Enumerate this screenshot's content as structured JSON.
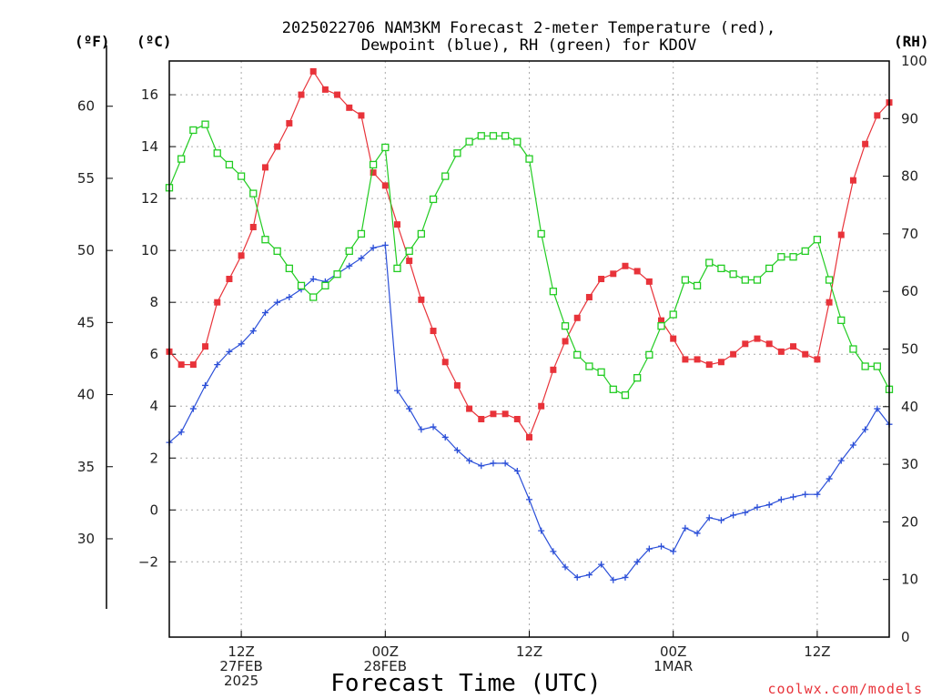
{
  "chart_data": {
    "type": "line",
    "title_line1": "2025022706 NAM3KM Forecast 2-meter Temperature (red),",
    "title_line2": "Dewpoint (blue), RH (green) for KDOV",
    "xlabel": "Forecast Time (UTC)",
    "credit": "coolwx.com/models",
    "left_unit_f": "(ºF)",
    "left_unit_c": "(ºC)",
    "right_unit": "(RH)",
    "ylim_c": [
      -4.9,
      17.3
    ],
    "ylim_rh": [
      0,
      100
    ],
    "f_ticks": [
      30,
      35,
      40,
      45,
      50,
      55,
      60
    ],
    "c_ticks": [
      -2,
      0,
      2,
      4,
      6,
      8,
      10,
      12,
      14,
      16
    ],
    "c_tick_labels": [
      "−2",
      "0",
      "2",
      "4",
      "6",
      "8",
      "10",
      "12",
      "14",
      "16"
    ],
    "rh_ticks": [
      0,
      10,
      20,
      30,
      40,
      50,
      60,
      70,
      80,
      90,
      100
    ],
    "x_range_hours": [
      0,
      60
    ],
    "x_ticks": [
      {
        "hour": 6,
        "lines": [
          "12Z",
          "27FEB",
          "2025"
        ]
      },
      {
        "hour": 18,
        "lines": [
          "00Z",
          "28FEB"
        ]
      },
      {
        "hour": 30,
        "lines": [
          "12Z"
        ]
      },
      {
        "hour": 42,
        "lines": [
          "00Z",
          "1MAR"
        ]
      },
      {
        "hour": 54,
        "lines": [
          "12Z"
        ]
      }
    ],
    "series": [
      {
        "key": "temperature",
        "color": "#e8333a",
        "marker": "filled-square",
        "axis": "left",
        "values": [
          6.1,
          5.6,
          5.6,
          6.3,
          8.0,
          8.9,
          9.8,
          10.9,
          13.2,
          14.0,
          14.9,
          16.0,
          16.9,
          16.2,
          16.0,
          15.5,
          15.2,
          13.0,
          12.5,
          11.0,
          9.6,
          8.1,
          6.9,
          5.7,
          4.8,
          3.9,
          3.5,
          3.7,
          3.7,
          3.5,
          2.8,
          4.0,
          5.4,
          6.5,
          7.4,
          8.2,
          8.9,
          9.1,
          9.4,
          9.2,
          8.8,
          7.3,
          6.6,
          5.8,
          5.8,
          5.6,
          5.7,
          6.0,
          6.4,
          6.6,
          6.4,
          6.1,
          6.3,
          6.0,
          5.8,
          8.0,
          10.6,
          12.7,
          14.1,
          15.2,
          15.7
        ]
      },
      {
        "key": "dewpoint",
        "color": "#2b4fd8",
        "marker": "plus",
        "axis": "left",
        "values": [
          2.6,
          3.0,
          3.9,
          4.8,
          5.6,
          6.1,
          6.4,
          6.9,
          7.6,
          8.0,
          8.2,
          8.5,
          8.9,
          8.8,
          9.1,
          9.4,
          9.7,
          10.1,
          10.2,
          4.6,
          3.9,
          3.1,
          3.2,
          2.8,
          2.3,
          1.9,
          1.7,
          1.8,
          1.8,
          1.5,
          0.4,
          -0.8,
          -1.6,
          -2.2,
          -2.6,
          -2.5,
          -2.1,
          -2.7,
          -2.6,
          -2.0,
          -1.5,
          -1.4,
          -1.6,
          -0.7,
          -0.9,
          -0.3,
          -0.4,
          -0.2,
          -0.1,
          0.1,
          0.2,
          0.4,
          0.5,
          0.6,
          0.6,
          1.2,
          1.9,
          2.5,
          3.1,
          3.9,
          3.3
        ]
      },
      {
        "key": "rh",
        "color": "#22cc22",
        "marker": "open-square",
        "axis": "right",
        "values": [
          78,
          83,
          88,
          89,
          84,
          82,
          80,
          77,
          69,
          67,
          64,
          61,
          59,
          61,
          63,
          67,
          70,
          82,
          85,
          64,
          67,
          70,
          76,
          80,
          84,
          86,
          87,
          87,
          87,
          86,
          83,
          70,
          60,
          54,
          49,
          47,
          46,
          43,
          42,
          45,
          49,
          54,
          56,
          62,
          61,
          65,
          64,
          63,
          62,
          62,
          64,
          66,
          66,
          67,
          69,
          62,
          55,
          50,
          47,
          47,
          43
        ]
      }
    ]
  }
}
